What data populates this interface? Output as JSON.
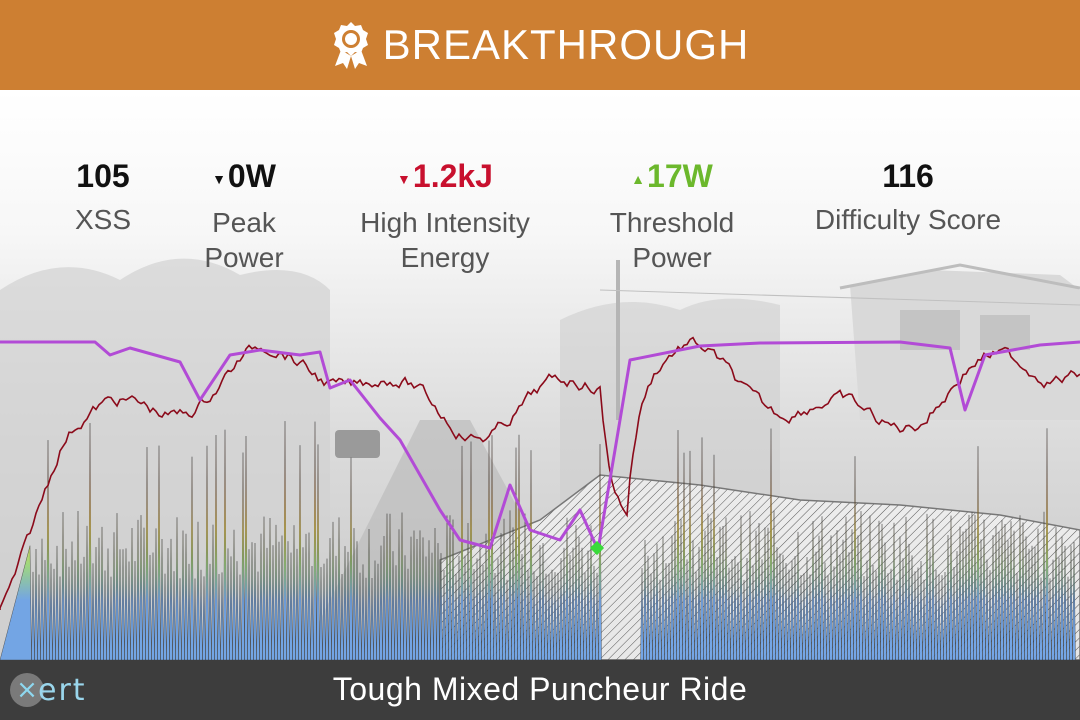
{
  "header": {
    "title": "BREAKTHROUGH",
    "color": "#cd7f32",
    "icon": "award-ribbon-icon"
  },
  "stats": [
    {
      "value": "105",
      "label": "XSS",
      "trend": "none",
      "color": "#111111"
    },
    {
      "value": "0W",
      "label": "Peak Power",
      "trend": "down",
      "color": "#111111"
    },
    {
      "value": "1.2kJ",
      "label": "High Intensity Energy",
      "trend": "down",
      "color": "#c8102e"
    },
    {
      "value": "17W",
      "label": "Threshold Power",
      "trend": "up",
      "color": "#6cb82c"
    },
    {
      "value": "116",
      "label": "Difficulty Score",
      "trend": "none",
      "color": "#111111"
    }
  ],
  "footer": {
    "ride_name": "Tough Mixed Puncheur Ride",
    "logo_text": "xert"
  }
}
